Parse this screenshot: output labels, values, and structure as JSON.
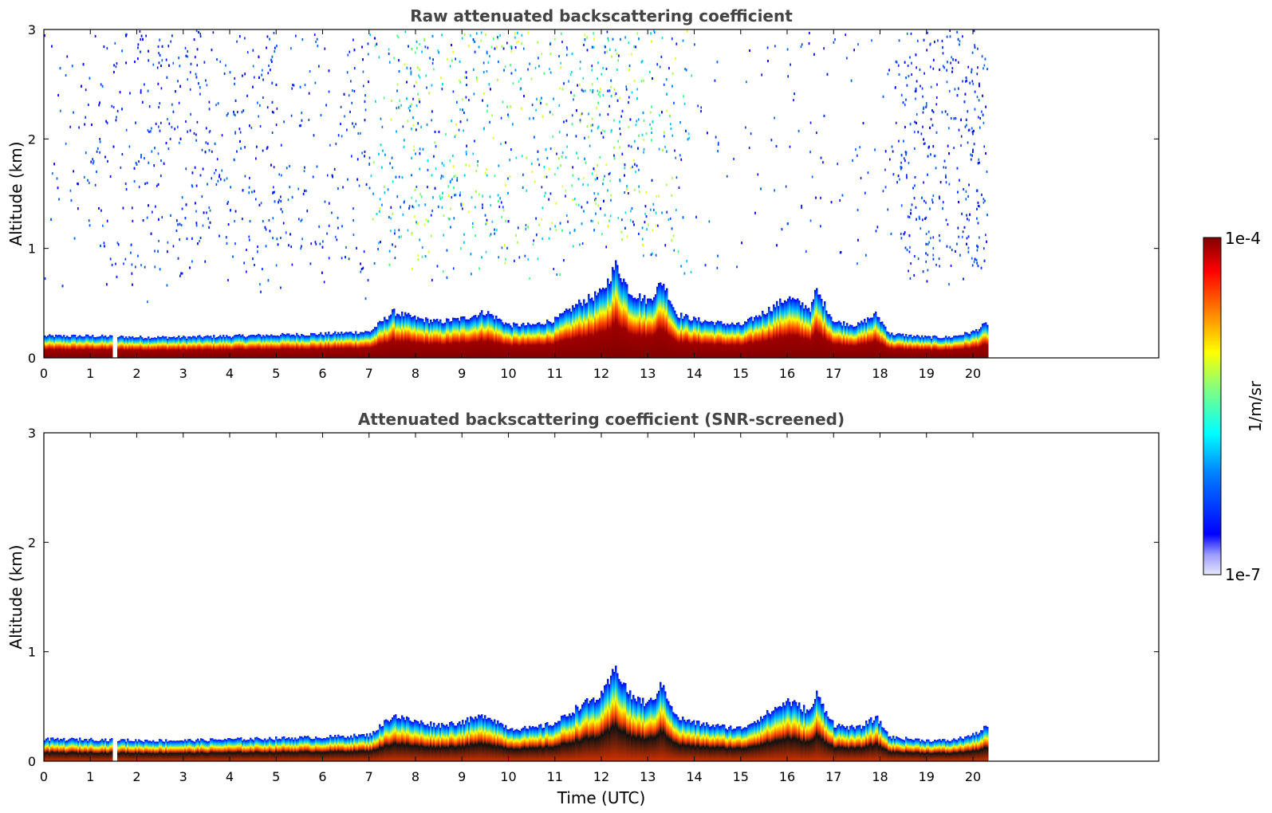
{
  "chart_data": [
    {
      "type": "heatmap",
      "title": "Raw attenuated backscattering coefficient",
      "xlabel": "",
      "ylabel": "Altitude (km)",
      "xlim": [
        0,
        24
      ],
      "ylim": [
        0,
        3
      ],
      "x_ticks": [
        0,
        1,
        2,
        3,
        4,
        5,
        6,
        7,
        8,
        9,
        10,
        11,
        12,
        13,
        14,
        15,
        16,
        17,
        18,
        19,
        20
      ],
      "y_ticks": [
        0,
        1,
        2,
        3
      ],
      "data_end_time": 20.3,
      "gap_time": 1.5,
      "layer_top_km": [
        [
          0,
          0.2
        ],
        [
          1,
          0.2
        ],
        [
          2,
          0.19
        ],
        [
          3,
          0.19
        ],
        [
          4,
          0.2
        ],
        [
          5,
          0.21
        ],
        [
          6,
          0.22
        ],
        [
          7,
          0.24
        ],
        [
          7.5,
          0.42
        ],
        [
          8,
          0.36
        ],
        [
          8.5,
          0.33
        ],
        [
          9,
          0.36
        ],
        [
          9.5,
          0.42
        ],
        [
          10,
          0.3
        ],
        [
          10.5,
          0.3
        ],
        [
          11,
          0.35
        ],
        [
          11.5,
          0.5
        ],
        [
          12,
          0.6
        ],
        [
          12.3,
          0.85
        ],
        [
          12.6,
          0.6
        ],
        [
          13,
          0.52
        ],
        [
          13.3,
          0.7
        ],
        [
          13.6,
          0.4
        ],
        [
          14,
          0.35
        ],
        [
          14.5,
          0.32
        ],
        [
          15,
          0.3
        ],
        [
          15.5,
          0.42
        ],
        [
          16,
          0.55
        ],
        [
          16.5,
          0.45
        ],
        [
          16.6,
          0.62
        ],
        [
          17,
          0.33
        ],
        [
          17.5,
          0.3
        ],
        [
          17.9,
          0.4
        ],
        [
          18.2,
          0.22
        ],
        [
          19,
          0.19
        ],
        [
          19.5,
          0.19
        ],
        [
          20,
          0.24
        ],
        [
          20.3,
          0.32
        ]
      ],
      "aerosol_density": [
        [
          0,
          0.08
        ],
        [
          1,
          0.25
        ],
        [
          2,
          0.45
        ],
        [
          3,
          0.5
        ],
        [
          4,
          0.35
        ],
        [
          5,
          0.45
        ],
        [
          6,
          0.25
        ],
        [
          7,
          0.35
        ],
        [
          8,
          0.6
        ],
        [
          9,
          0.55
        ],
        [
          10,
          0.45
        ],
        [
          11,
          0.5
        ],
        [
          12,
          0.75
        ],
        [
          13,
          0.55
        ],
        [
          14,
          0.12
        ],
        [
          15,
          0.08
        ],
        [
          16,
          0.1
        ],
        [
          17,
          0.12
        ],
        [
          18,
          0.05
        ],
        [
          18.6,
          0.7
        ],
        [
          20.3,
          0.7
        ]
      ],
      "colorbar": {
        "min": "1e-7",
        "max": "1e-4",
        "label": "1/m/sr",
        "scale": "log",
        "colormap": "jet"
      }
    },
    {
      "type": "heatmap",
      "title": "Attenuated backscattering coefficient (SNR-screened)",
      "xlabel": "Time (UTC)",
      "ylabel": "Altitude (km)",
      "xlim": [
        0,
        24
      ],
      "ylim": [
        0,
        3
      ],
      "x_ticks": [
        0,
        1,
        2,
        3,
        4,
        5,
        6,
        7,
        8,
        9,
        10,
        11,
        12,
        13,
        14,
        15,
        16,
        17,
        18,
        19,
        20
      ],
      "y_ticks": [
        0,
        1,
        2,
        3
      ],
      "data_end_time": 20.3,
      "gap_time": 1.5,
      "background_screened": true
    }
  ],
  "colors": {
    "title_color": "#444444",
    "axis_color": "#000000",
    "jet_stops": [
      "#00007f",
      "#0000ff",
      "#007fff",
      "#00ffff",
      "#7fff7f",
      "#ffff00",
      "#ff7f00",
      "#ff0000",
      "#7f0000"
    ]
  }
}
